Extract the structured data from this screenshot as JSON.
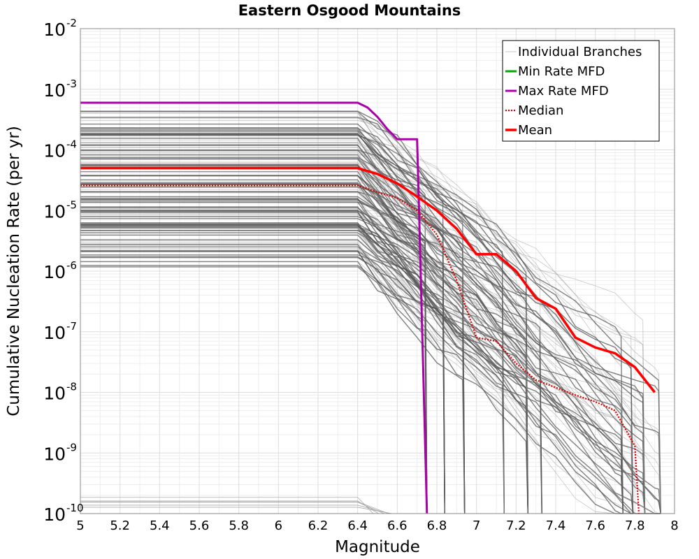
{
  "chart_data": {
    "type": "line",
    "title": "Eastern Osgood Mountains",
    "xlabel": "Magnitude",
    "ylabel": "Cumulative Nucleation Rate (per yr)",
    "xlim": [
      5,
      8
    ],
    "ylim": [
      1e-10,
      0.01
    ],
    "yscale": "log",
    "grid": true,
    "legend_position": "top-right",
    "x_ticks": [
      "5",
      "5.2",
      "5.4",
      "5.6",
      "5.8",
      "6",
      "6.2",
      "6.4",
      "6.6",
      "6.8",
      "7",
      "7.2",
      "7.4",
      "7.6",
      "7.8",
      "8"
    ],
    "y_ticks": [
      {
        "base": "10",
        "exp": "-10"
      },
      {
        "base": "10",
        "exp": "-9"
      },
      {
        "base": "10",
        "exp": "-8"
      },
      {
        "base": "10",
        "exp": "-7"
      },
      {
        "base": "10",
        "exp": "-6"
      },
      {
        "base": "10",
        "exp": "-5"
      },
      {
        "base": "10",
        "exp": "-4"
      },
      {
        "base": "10",
        "exp": "-3"
      },
      {
        "base": "10",
        "exp": "-2"
      }
    ],
    "series": [
      {
        "name": "Individual Branches",
        "color": "#555555",
        "x": [],
        "y": []
      },
      {
        "name": "Min Rate MFD",
        "color": "#00aa00",
        "x": [],
        "y": []
      },
      {
        "name": "Max Rate MFD",
        "color": "#aa00aa",
        "x": [
          5.0,
          6.4,
          6.45,
          6.5,
          6.55,
          6.6,
          6.7,
          6.71,
          6.75
        ],
        "y": [
          0.0006,
          0.0006,
          0.0005,
          0.00035,
          0.00022,
          0.00015,
          0.00015,
          1e-05,
          1e-10
        ]
      },
      {
        "name": "Median",
        "color": "#dd0000",
        "x": [
          5.0,
          6.4,
          6.5,
          6.6,
          6.7,
          6.8,
          6.9,
          7.0,
          7.1,
          7.2,
          7.3,
          7.4,
          7.5,
          7.6,
          7.7,
          7.8,
          7.82
        ],
        "y": [
          2.6e-05,
          2.6e-05,
          2e-05,
          1.6e-05,
          1e-05,
          4e-06,
          7e-07,
          8e-08,
          7e-08,
          3e-08,
          1.6e-08,
          1.2e-08,
          9e-09,
          7e-09,
          5e-09,
          1.3e-09,
          1e-10
        ]
      },
      {
        "name": "Mean",
        "color": "#ff0000",
        "x": [
          5.0,
          6.4,
          6.5,
          6.6,
          6.7,
          6.8,
          6.9,
          7.0,
          7.1,
          7.2,
          7.3,
          7.4,
          7.5,
          7.6,
          7.7,
          7.8,
          7.9
        ],
        "y": [
          5e-05,
          5e-05,
          4e-05,
          2.8e-05,
          1.7e-05,
          1e-05,
          5e-06,
          1.9e-06,
          1.9e-06,
          1e-06,
          3.6e-07,
          2.4e-07,
          8e-08,
          5.5e-08,
          4.4e-08,
          2.6e-08,
          1e-08
        ]
      }
    ]
  }
}
